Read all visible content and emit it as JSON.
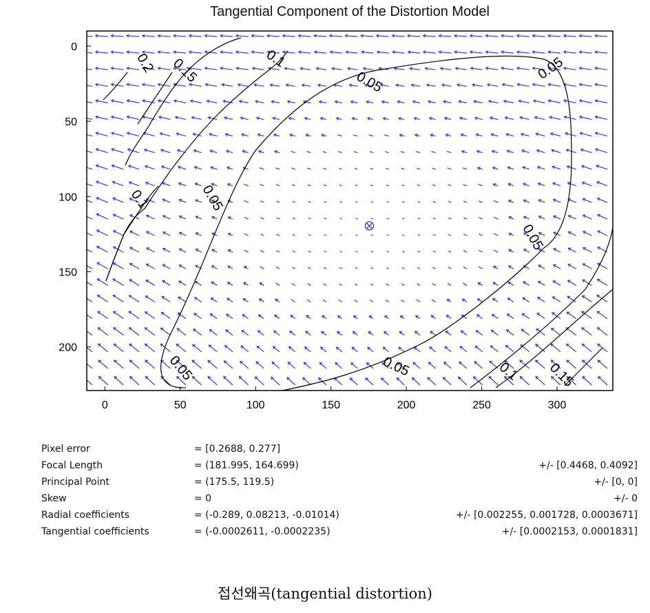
{
  "chart_data": {
    "type": "quiver-contour",
    "title": "Tangential Component of the Distortion Model",
    "xlim": [
      -12,
      337
    ],
    "ylim": [
      -10,
      229
    ],
    "y_reversed": true,
    "x_ticks": [
      0,
      50,
      100,
      150,
      200,
      250,
      300
    ],
    "y_ticks": [
      0,
      50,
      100,
      150,
      200
    ],
    "grid": false,
    "principal_point": {
      "x": 175.5,
      "y": 119.5,
      "marker": "circle-x"
    },
    "arrow_color": "#3333ff",
    "contour_color": "#000000",
    "contour_levels": [
      {
        "label": "0.05"
      },
      {
        "label": "0.05"
      },
      {
        "label": "0.05"
      },
      {
        "label": "0.05"
      },
      {
        "label": "0.05"
      },
      {
        "label": "0.05"
      },
      {
        "label": "0.1"
      },
      {
        "label": "0.1"
      },
      {
        "label": "0.1"
      },
      {
        "label": "0.15"
      },
      {
        "label": "0.15"
      },
      {
        "label": "0.2"
      }
    ]
  },
  "params": [
    {
      "label": "Pixel error",
      "value": "= [0.2688, 0.277]",
      "unc": ""
    },
    {
      "label": "Focal Length",
      "value": "= (181.995, 164.699)",
      "unc": "+/- [0.4468, 0.4092]"
    },
    {
      "label": "Principal Point",
      "value": "= (175.5, 119.5)",
      "unc": "+/- [0, 0]"
    },
    {
      "label": "Skew",
      "value": "= 0",
      "unc": "+/- 0"
    },
    {
      "label": "Radial coefficients",
      "value": "= (-0.289, 0.08213, -0.01014)",
      "unc": "+/- [0.002255, 0.001728, 0.0003671]"
    },
    {
      "label": "Tangential coefficients",
      "value": "= (-0.0002611, -0.0002235)",
      "unc": "+/- [0.0002153, 0.0001831]"
    }
  ],
  "caption": "접선왜곡(tangential distortion)"
}
